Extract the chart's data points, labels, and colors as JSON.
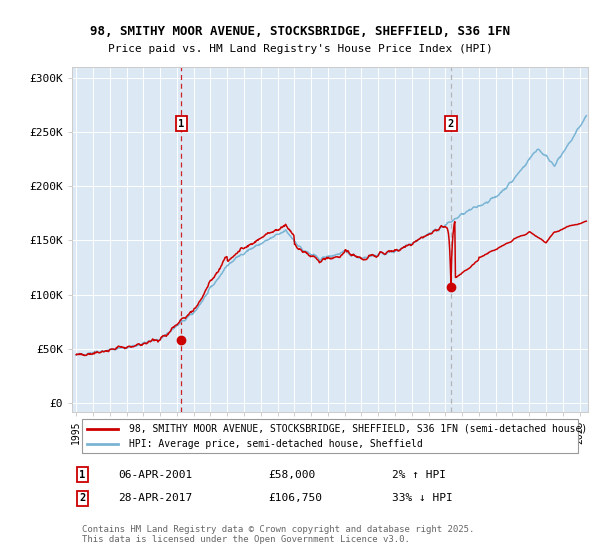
{
  "title_line1": "98, SMITHY MOOR AVENUE, STOCKSBRIDGE, SHEFFIELD, S36 1FN",
  "title_line2": "Price paid vs. HM Land Registry's House Price Index (HPI)",
  "background_color": "#dce9f5",
  "fig_bg_color": "#ffffff",
  "red_line_color": "#cc0000",
  "blue_line_color": "#7ab4d4",
  "marker1_date_x": 2001.27,
  "marker1_price": 58000,
  "marker2_date_x": 2017.33,
  "marker2_price": 106750,
  "vline1_color": "#cc0000",
  "vline2_color": "#aaaaaa",
  "yticks": [
    0,
    50000,
    100000,
    150000,
    200000,
    250000,
    300000
  ],
  "ytick_labels": [
    "£0",
    "£50K",
    "£100K",
    "£150K",
    "£200K",
    "£250K",
    "£300K"
  ],
  "xmin": 1994.75,
  "xmax": 2025.5,
  "ymin": -8000,
  "ymax": 310000,
  "legend_red": "98, SMITHY MOOR AVENUE, STOCKSBRIDGE, SHEFFIELD, S36 1FN (semi-detached house)",
  "legend_blue": "HPI: Average price, semi-detached house, Sheffield",
  "annotation1_date": "06-APR-2001",
  "annotation1_price": "£58,000",
  "annotation1_hpi": "2% ↑ HPI",
  "annotation2_date": "28-APR-2017",
  "annotation2_price": "£106,750",
  "annotation2_hpi": "33% ↓ HPI",
  "footer": "Contains HM Land Registry data © Crown copyright and database right 2025.\nThis data is licensed under the Open Government Licence v3.0."
}
